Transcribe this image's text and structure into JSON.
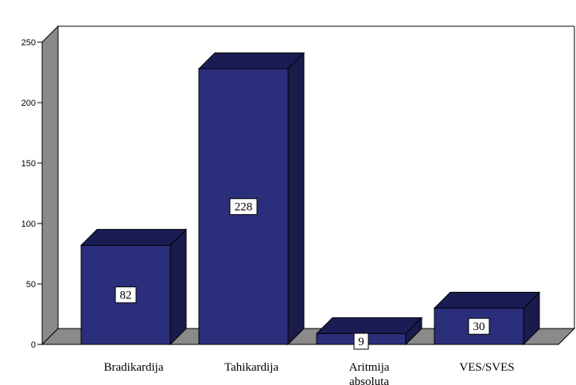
{
  "chart_data": {
    "type": "bar",
    "style": "3d",
    "categories": [
      [
        "Bradikardija"
      ],
      [
        "Tahikardija"
      ],
      [
        "Aritmija",
        "absoluta"
      ],
      [
        "VES/SVES"
      ]
    ],
    "values": [
      82,
      228,
      9,
      30
    ],
    "title": "",
    "xlabel": "",
    "ylabel": "",
    "ylim": [
      0,
      250
    ],
    "yticks": [
      0,
      50,
      100,
      150,
      200,
      250
    ],
    "grid": false,
    "legend": false,
    "colors": {
      "bar_front": "#2B2E7A",
      "bar_side": "#1A1A4C",
      "bar_top": "#1C1C55",
      "floor": "#8A8A8A",
      "wall": "#8A8A8A",
      "outline": "#000000"
    }
  }
}
